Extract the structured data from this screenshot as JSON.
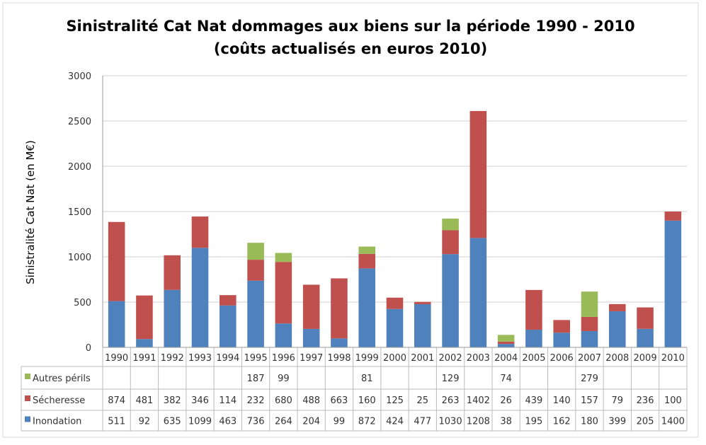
{
  "chart_data": {
    "type": "bar",
    "stacked": true,
    "title": "Sinistralité Cat Nat dommages aux biens sur la période 1990 - 2010",
    "subtitle": "(coûts actualisés en euros 2010)",
    "xlabel": "",
    "ylabel": "Sinistralité Cat Nat (en M€)",
    "ylim": [
      0,
      3000
    ],
    "yticks": [
      0,
      500,
      1000,
      1500,
      2000,
      2500,
      3000
    ],
    "grid": true,
    "legend": "table-below",
    "categories": [
      "1990",
      "1991",
      "1992",
      "1993",
      "1994",
      "1995",
      "1996",
      "1997",
      "1998",
      "1999",
      "2000",
      "2001",
      "2002",
      "2003",
      "2004",
      "2005",
      "2006",
      "2007",
      "2008",
      "2009",
      "2010"
    ],
    "series": [
      {
        "name": "Autres périls",
        "color": "#9bbb59",
        "values": [
          null,
          null,
          null,
          null,
          null,
          187,
          99,
          null,
          null,
          81,
          null,
          null,
          129,
          null,
          74,
          null,
          null,
          279,
          null,
          null,
          null
        ]
      },
      {
        "name": "Sécheresse",
        "color": "#c0504d",
        "values": [
          874,
          481,
          382,
          346,
          114,
          232,
          680,
          488,
          663,
          160,
          125,
          25,
          263,
          1402,
          26,
          439,
          140,
          157,
          79,
          236,
          100
        ]
      },
      {
        "name": "Inondation",
        "color": "#4f81bd",
        "values": [
          511,
          92,
          635,
          1099,
          463,
          736,
          264,
          204,
          99,
          872,
          424,
          477,
          1030,
          1208,
          38,
          195,
          162,
          180,
          399,
          205,
          1400
        ]
      }
    ]
  }
}
